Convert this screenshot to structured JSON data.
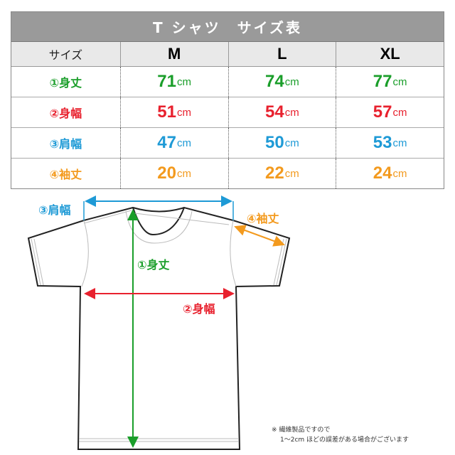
{
  "title": "T シャツ　サイズ表",
  "header": {
    "label": "サイズ",
    "sizes": [
      "M",
      "L",
      "XL"
    ]
  },
  "unit": "cm",
  "rows": [
    {
      "label": "①身丈",
      "color": "#1a9e2a",
      "values": [
        "71",
        "74",
        "77"
      ]
    },
    {
      "label": "②身幅",
      "color": "#e8212e",
      "values": [
        "51",
        "54",
        "57"
      ]
    },
    {
      "label": "③肩幅",
      "color": "#1e9ad6",
      "values": [
        "47",
        "50",
        "53"
      ]
    },
    {
      "label": "④袖丈",
      "color": "#f39a1e",
      "values": [
        "20",
        "22",
        "24"
      ]
    }
  ],
  "diagram": {
    "shoulder_label": "③肩幅",
    "length_label": "①身丈",
    "width_label": "②身幅",
    "sleeve_label": "④袖丈"
  },
  "note": {
    "line1": "※ 繊維製品ですので",
    "line2": "1～2cm ほどの誤差がある場合がございます"
  }
}
